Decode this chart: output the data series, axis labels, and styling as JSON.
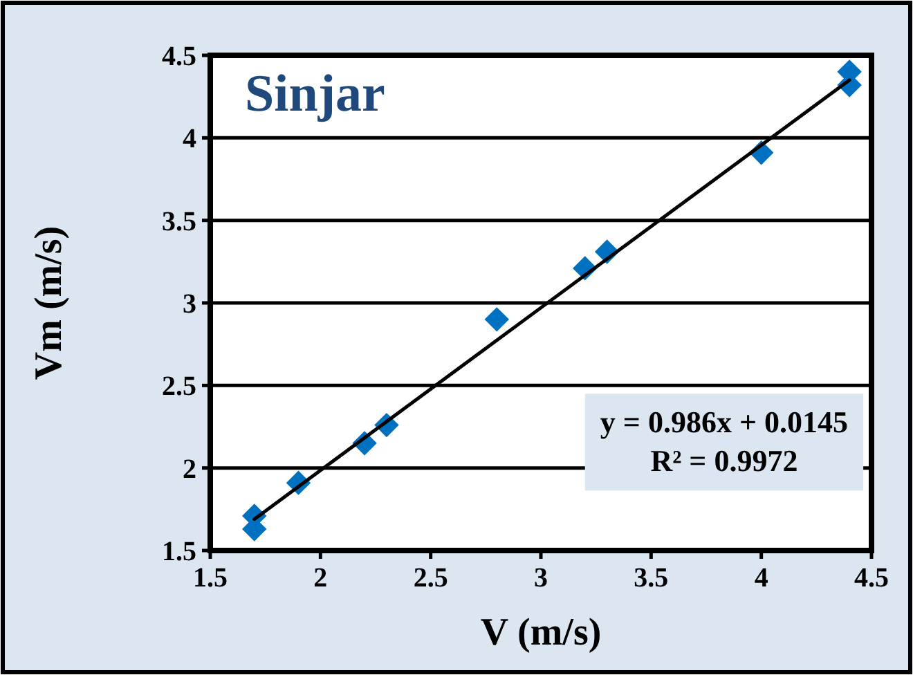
{
  "chart_data": {
    "type": "scatter",
    "title": "Sinjar",
    "xlabel": "V (m/s)",
    "ylabel": "Vm (m/s)",
    "xlim": [
      1.5,
      4.5
    ],
    "xticks": [
      1.5,
      2,
      2.5,
      3,
      3.5,
      4,
      4.5
    ],
    "ylim": [
      1.5,
      4.5
    ],
    "yticks": [
      1.5,
      2,
      2.5,
      3,
      3.5,
      4,
      4.5
    ],
    "grid": "y",
    "marker": "diamond",
    "annotations": [
      "y = 0.986x + 0.0145",
      "R² = 0.9972"
    ],
    "series": [
      {
        "color": "#0070c0",
        "x": [
          1.7,
          1.7,
          1.9,
          2.2,
          2.3,
          2.8,
          3.2,
          3.3,
          4.0,
          4.4,
          4.4
        ],
        "values": [
          1.71,
          1.63,
          1.91,
          2.15,
          2.26,
          2.9,
          3.21,
          3.31,
          3.91,
          4.4,
          4.32
        ]
      },
      {
        "type": "line",
        "color": "#000000",
        "marker": "none",
        "line_style": "solid",
        "x": [
          1.7,
          4.4
        ],
        "values": [
          1.69,
          4.35
        ]
      }
    ]
  }
}
